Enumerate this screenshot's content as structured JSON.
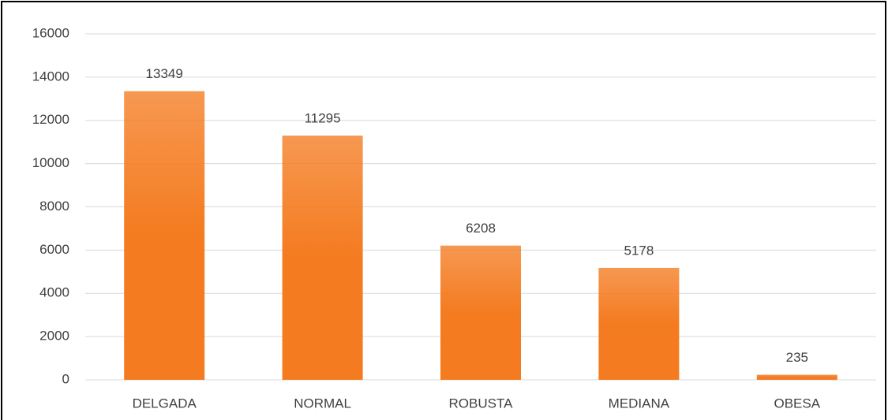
{
  "chart_data": {
    "type": "bar",
    "categories": [
      "DELGADA",
      "NORMAL",
      "ROBUSTA",
      "MEDIANA",
      "OBESA"
    ],
    "values": [
      13349,
      11295,
      6208,
      5178,
      235
    ],
    "color": "#f47b20",
    "ylim": [
      0,
      16000
    ],
    "yticks": [
      0,
      2000,
      4000,
      6000,
      8000,
      10000,
      12000,
      14000,
      16000
    ],
    "grid": true
  }
}
